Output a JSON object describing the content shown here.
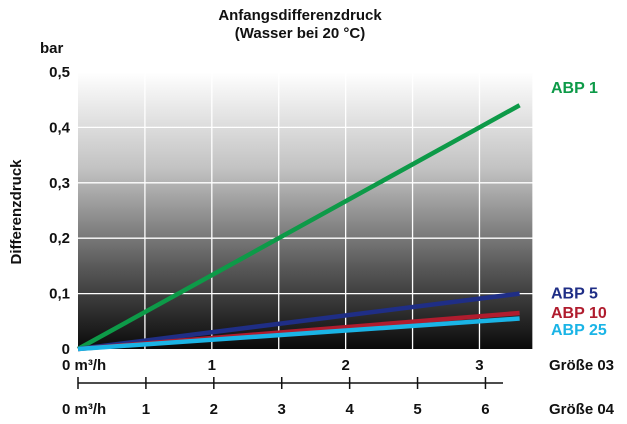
{
  "chart_data": {
    "type": "line",
    "title": "Anfangsdifferenzdruck",
    "subtitle": "(Wasser bei 20 °C)",
    "y_unit": "bar",
    "ylabel": "Differenzdruck",
    "ylim": [
      0,
      0.5
    ],
    "y_ticks": [
      "0",
      "0,1",
      "0,2",
      "0,3",
      "0,4",
      "0,5"
    ],
    "xlim": [
      0,
      3.4
    ],
    "x_axis_top": {
      "name": "Größe 03",
      "ticks": [
        {
          "value": 0,
          "label": "0 m³/h"
        },
        {
          "value": 1,
          "label": "1"
        },
        {
          "value": 2,
          "label": "2"
        },
        {
          "value": 3,
          "label": "3"
        }
      ]
    },
    "x_axis_bottom": {
      "name": "Größe 04",
      "ticks": [
        {
          "value": 0,
          "label": "0 m³/h"
        },
        {
          "value": 1,
          "label": "1"
        },
        {
          "value": 2,
          "label": "2"
        },
        {
          "value": 3,
          "label": "3"
        },
        {
          "value": 4,
          "label": "4"
        },
        {
          "value": 5,
          "label": "5"
        },
        {
          "value": 6,
          "label": "6"
        }
      ]
    },
    "grid": true,
    "series": [
      {
        "name": "ABP 1",
        "color": "#0d9a48",
        "x": [
          0,
          3.3
        ],
        "y": [
          0,
          0.44
        ]
      },
      {
        "name": "ABP 5",
        "color": "#1f2e86",
        "x": [
          0,
          3.3
        ],
        "y": [
          0,
          0.1
        ]
      },
      {
        "name": "ABP 10",
        "color": "#b01c2e",
        "x": [
          0,
          3.3
        ],
        "y": [
          0,
          0.065
        ]
      },
      {
        "name": "ABP 25",
        "color": "#1ab4e6",
        "x": [
          0,
          3.3
        ],
        "y": [
          0,
          0.055
        ]
      }
    ]
  }
}
